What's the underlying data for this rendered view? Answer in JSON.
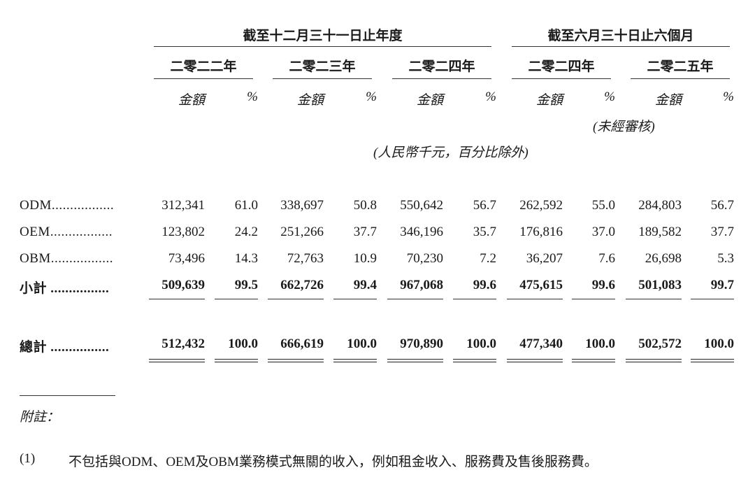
{
  "header": {
    "group1": "截至十二月三十一日止年度",
    "group2": "截至六月三十日止六個月",
    "years": [
      "二零二二年",
      "二零二三年",
      "二零二四年",
      "二零二四年",
      "二零二五年"
    ],
    "amount_label": "金額",
    "pct_label": "%",
    "unaudited": "(未經審核)",
    "unit_note": "(人民幣千元，百分比除外)"
  },
  "rows": [
    {
      "label": "ODM.................",
      "values": [
        "312,341",
        "61.0",
        "338,697",
        "50.8",
        "550,642",
        "56.7",
        "262,592",
        "55.0",
        "284,803",
        "56.7"
      ]
    },
    {
      "label": "OEM.................",
      "values": [
        "123,802",
        "24.2",
        "251,266",
        "37.7",
        "346,196",
        "35.7",
        "176,816",
        "37.0",
        "189,582",
        "37.7"
      ]
    },
    {
      "label": "OBM.................",
      "values": [
        "73,496",
        "14.3",
        "72,763",
        "10.9",
        "70,230",
        "7.2",
        "36,207",
        "7.6",
        "26,698",
        "5.3"
      ]
    },
    {
      "label": "小計 ................",
      "values": [
        "509,639",
        "99.5",
        "662,726",
        "99.4",
        "967,068",
        "99.6",
        "475,615",
        "99.6",
        "501,083",
        "99.7"
      ]
    },
    {
      "label": "總計 ................",
      "values": [
        "512,432",
        "100.0",
        "666,619",
        "100.0",
        "970,890",
        "100.0",
        "477,340",
        "100.0",
        "502,572",
        "100.0"
      ]
    }
  ],
  "notes": {
    "title": "附註：",
    "items": [
      {
        "num": "(1)",
        "text": "不包括與ODM、OEM及OBM業務模式無關的收入，例如租金收入、服務費及售後服務費。"
      }
    ]
  }
}
